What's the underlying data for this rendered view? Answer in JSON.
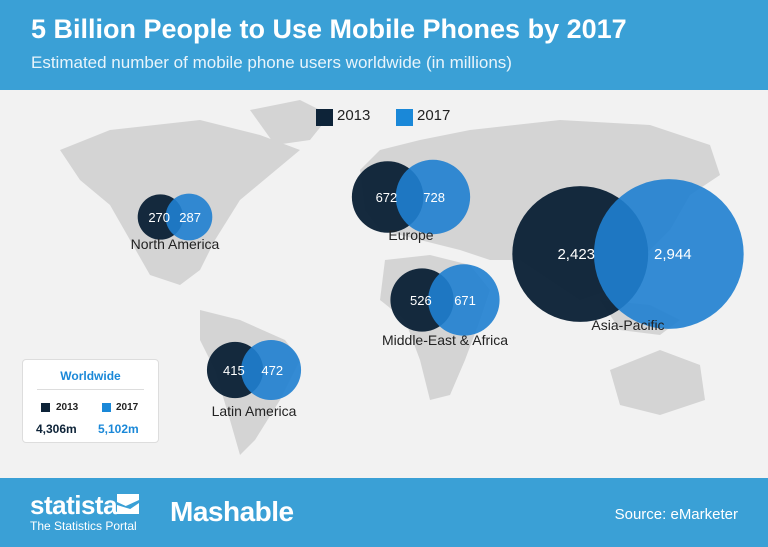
{
  "header": {
    "title": "5 Billion People to Use Mobile Phones by 2017",
    "subtitle": "Estimated number of mobile phone users worldwide (in millions)"
  },
  "legend": {
    "items": [
      {
        "label": "2013",
        "color": "#0d2338"
      },
      {
        "label": "2017",
        "color": "#1a88d8"
      }
    ]
  },
  "worldwide": {
    "title": "Worldwide",
    "year_2013": "2013",
    "year_2017": "2017",
    "total_2013": "4,306m",
    "total_2017": "5,102m"
  },
  "chart_data": {
    "type": "bubble-map",
    "unit": "millions",
    "series": [
      {
        "name": "2013",
        "color": "#0d2338"
      },
      {
        "name": "2017",
        "color": "#1f7fd0"
      }
    ],
    "regions": [
      {
        "name": "North America",
        "values": [
          270,
          287
        ],
        "labels": [
          "270",
          "287"
        ]
      },
      {
        "name": "Europe",
        "values": [
          672,
          728
        ],
        "labels": [
          "672",
          "728"
        ]
      },
      {
        "name": "Middle-East & Africa",
        "values": [
          526,
          671
        ],
        "labels": [
          "526",
          "671"
        ]
      },
      {
        "name": "Latin America",
        "values": [
          415,
          472
        ],
        "labels": [
          "415",
          "472"
        ]
      },
      {
        "name": "Asia-Pacific",
        "values": [
          2423,
          2944
        ],
        "labels": [
          "2,423",
          "2,944"
        ]
      }
    ]
  },
  "footer": {
    "brand": "statista",
    "brand_sub": "The Statistics Portal",
    "partner": "Mashable",
    "source": "Source: eMarketer"
  }
}
